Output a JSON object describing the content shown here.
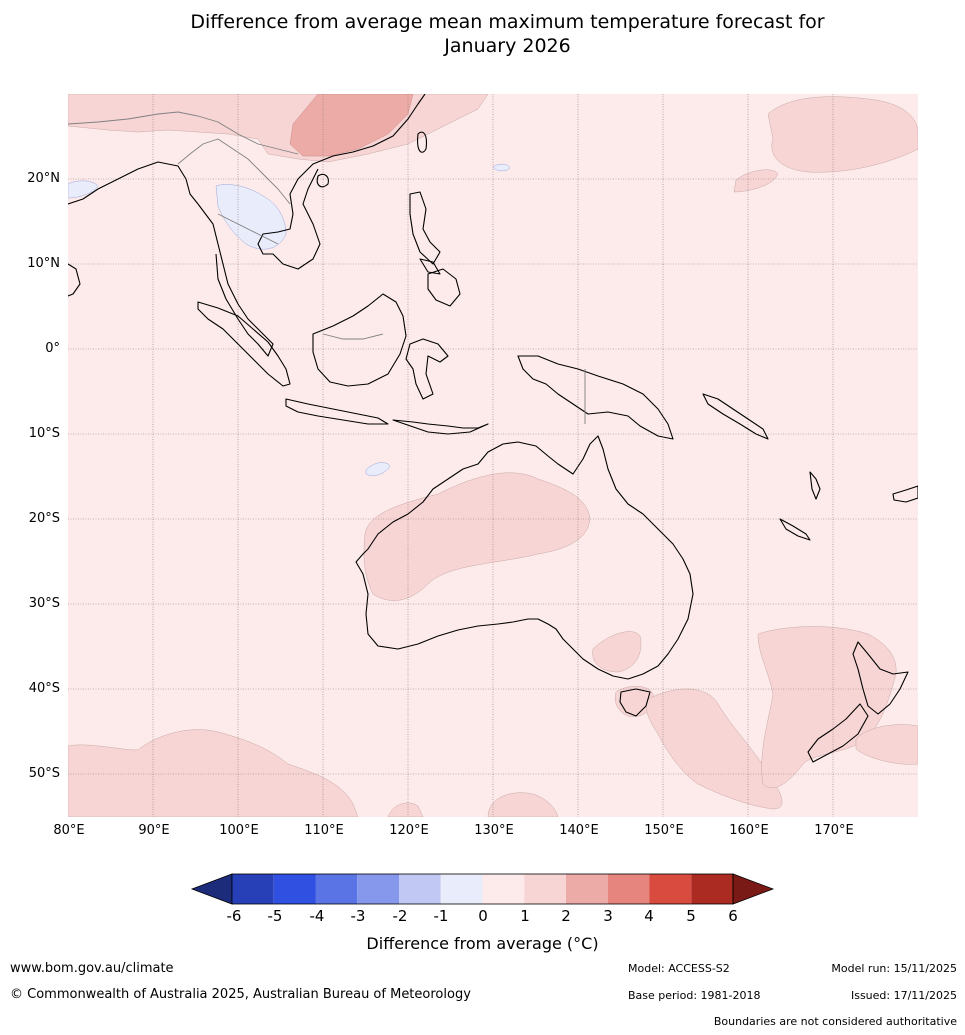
{
  "title": {
    "line1": "Difference from average mean maximum temperature forecast for",
    "line2": "January 2026"
  },
  "map": {
    "lat_labels": [
      "20°N",
      "10°N",
      "0°",
      "10°S",
      "20°S",
      "30°S",
      "40°S",
      "50°S"
    ],
    "lon_labels": [
      "80°E",
      "90°E",
      "100°E",
      "110°E",
      "120°E",
      "130°E",
      "140°E",
      "150°E",
      "160°E",
      "170°E"
    ],
    "background_color": "#fcebea",
    "region_colors": {
      "plus_1_to_2": "#f6d5d4",
      "plus_2_to_3": "#edaba7",
      "minus_0_to_1": "#e9ecfb"
    }
  },
  "colorbar": {
    "ticks": [
      "-6",
      "-5",
      "-4",
      "-3",
      "-2",
      "-1",
      "0",
      "1",
      "2",
      "3",
      "4",
      "5",
      "6"
    ],
    "colors": [
      "#1c2c7a",
      "#2740b8",
      "#2f50e0",
      "#5a74e6",
      "#8698ec",
      "#c0c8f3",
      "#e9ecfb",
      "#fcebea",
      "#f6d5d4",
      "#edaba7",
      "#e6847e",
      "#d94a3f",
      "#ab2a21",
      "#7a1a16"
    ],
    "label": "Difference from average (°C)"
  },
  "footer": {
    "website": "www.bom.gov.au/climate",
    "copyright": "© Commonwealth of Australia 2025, Australian Bureau of Meteorology",
    "model": "Model: ACCESS-S2",
    "base_period": "Base period: 1981-2018",
    "model_run": "Model run: 15/11/2025",
    "issued": "Issued: 17/11/2025",
    "disclaimer": "Boundaries are not considered authoritative"
  }
}
